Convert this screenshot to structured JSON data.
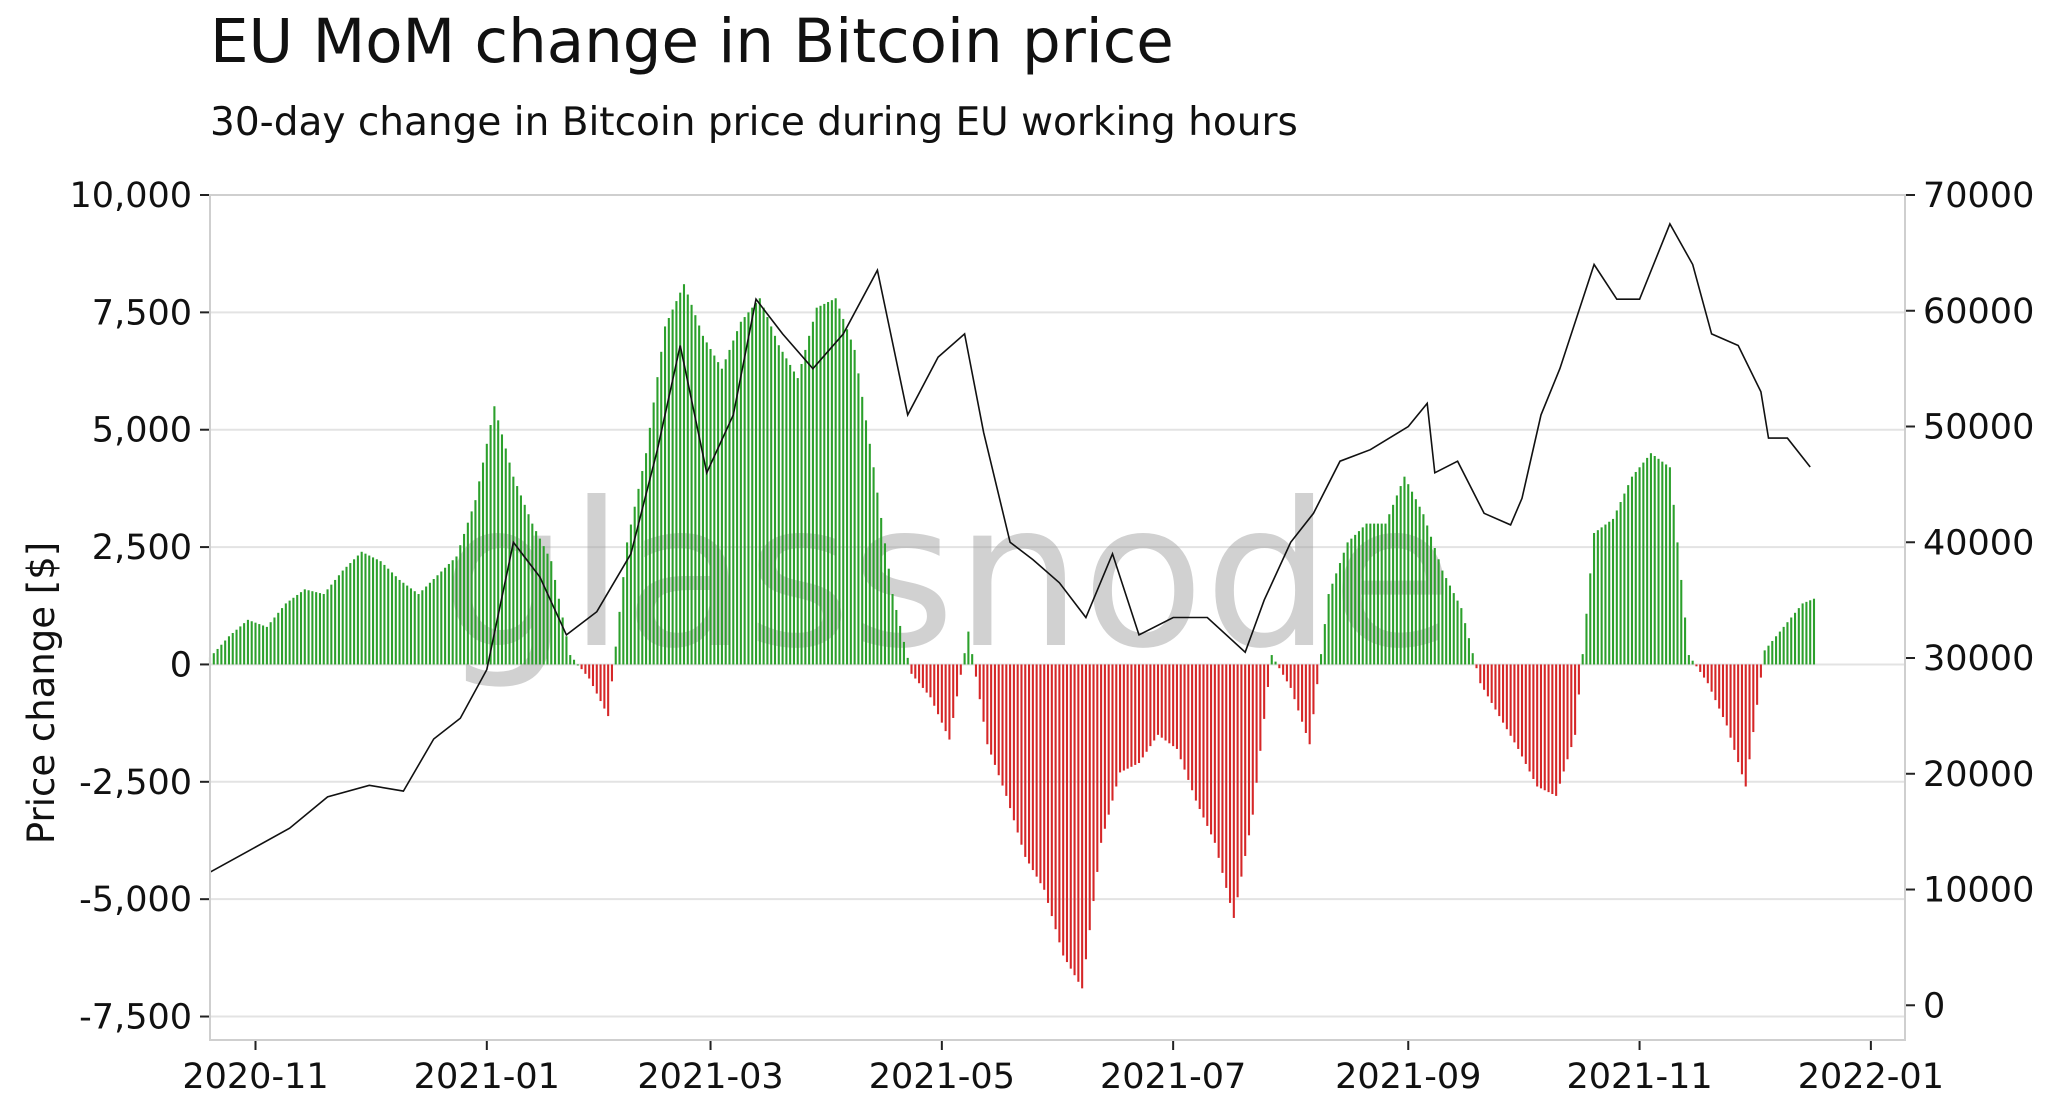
{
  "header": {
    "title": "EU MoM change in Bitcoin price",
    "subtitle": "30-day change in Bitcoin price during EU working hours"
  },
  "watermark": "glassnode",
  "colors": {
    "positive": "#2ca02c",
    "negative": "#d62728",
    "line": "#111111",
    "grid": "#e3e3e3"
  },
  "chart_data": {
    "type": "bar",
    "title": "EU MoM change in Bitcoin price",
    "subtitle": "30-day change in Bitcoin price during EU working hours",
    "ylabel": "Price change [$]",
    "ylim": [
      -8000,
      10000
    ],
    "y2lim": [
      -3000,
      70000
    ],
    "xlim": [
      "2020-10-20",
      "2022-01-10"
    ],
    "x_ticks": [
      "2020-11",
      "2021-01",
      "2021-03",
      "2021-05",
      "2021-07",
      "2021-09",
      "2021-11",
      "2022-01"
    ],
    "y_ticks": [
      10000,
      7500,
      5000,
      2500,
      0,
      -2500,
      -5000,
      -7500
    ],
    "y_tick_labels": [
      "10,000",
      "7,500",
      "5,000",
      "2,500",
      "0",
      "-2,500",
      "-5,000",
      "-7,500"
    ],
    "y2_ticks": [
      70000,
      60000,
      50000,
      40000,
      30000,
      20000,
      10000,
      0
    ],
    "y2_tick_labels": [
      "70000",
      "60000",
      "50000",
      "40000",
      "30000",
      "20000",
      "10000",
      "0"
    ],
    "grid": true,
    "series": [
      {
        "type": "bar",
        "axis": "left",
        "dates": [
          "2020-10-20",
          "2020-10-25",
          "2020-10-30",
          "2020-11-04",
          "2020-11-09",
          "2020-11-14",
          "2020-11-19",
          "2020-11-24",
          "2020-11-29",
          "2020-12-04",
          "2020-12-09",
          "2020-12-14",
          "2020-12-19",
          "2020-12-24",
          "2020-12-29",
          "2021-01-03",
          "2021-01-08",
          "2021-01-13",
          "2021-01-18",
          "2021-01-23",
          "2021-01-28",
          "2021-02-02",
          "2021-02-07",
          "2021-02-12",
          "2021-02-17",
          "2021-02-22",
          "2021-02-27",
          "2021-03-04",
          "2021-03-09",
          "2021-03-14",
          "2021-03-19",
          "2021-03-24",
          "2021-03-29",
          "2021-04-03",
          "2021-04-08",
          "2021-04-13",
          "2021-04-18",
          "2021-04-23",
          "2021-04-28",
          "2021-05-03",
          "2021-05-08",
          "2021-05-13",
          "2021-05-18",
          "2021-05-23",
          "2021-05-28",
          "2021-06-02",
          "2021-06-07",
          "2021-06-12",
          "2021-06-17",
          "2021-06-22",
          "2021-06-27",
          "2021-07-02",
          "2021-07-07",
          "2021-07-12",
          "2021-07-17",
          "2021-07-22",
          "2021-07-27",
          "2021-08-01",
          "2021-08-06",
          "2021-08-11",
          "2021-08-16",
          "2021-08-21",
          "2021-08-26",
          "2021-08-31",
          "2021-09-05",
          "2021-09-10",
          "2021-09-15",
          "2021-09-20",
          "2021-09-25",
          "2021-09-30",
          "2021-10-05",
          "2021-10-10",
          "2021-10-15",
          "2021-10-20",
          "2021-10-25",
          "2021-10-30",
          "2021-11-04",
          "2021-11-09",
          "2021-11-14",
          "2021-11-19",
          "2021-11-24",
          "2021-11-29",
          "2021-12-04",
          "2021-12-09",
          "2021-12-14",
          "2021-12-17"
        ],
        "values": [
          150,
          600,
          950,
          800,
          1300,
          1600,
          1500,
          2000,
          2400,
          2200,
          1800,
          1500,
          1900,
          2300,
          3500,
          5500,
          4000,
          3000,
          2200,
          200,
          -300,
          -1100,
          2600,
          4500,
          7200,
          8100,
          7000,
          6300,
          7300,
          7800,
          6800,
          6100,
          7600,
          7800,
          6700,
          4200,
          1500,
          -200,
          -700,
          -1600,
          700,
          -1700,
          -2800,
          -4100,
          -4800,
          -6200,
          -6900,
          -3800,
          -2300,
          -2100,
          -1500,
          -1800,
          -2900,
          -3800,
          -5400,
          -3200,
          200,
          -500,
          -1700,
          1500,
          2600,
          3000,
          3000,
          4000,
          3200,
          2000,
          1200,
          -400,
          -1100,
          -1800,
          -2600,
          -2800,
          -1500,
          2800,
          3100,
          4000,
          4500,
          4200,
          200,
          -400,
          -1300,
          -2600,
          300,
          800,
          1300,
          1400
        ]
      },
      {
        "type": "line",
        "axis": "right",
        "dates": [
          "2020-10-20",
          "2020-10-30",
          "2020-11-10",
          "2020-11-20",
          "2020-12-01",
          "2020-12-10",
          "2020-12-18",
          "2020-12-25",
          "2021-01-01",
          "2021-01-08",
          "2021-01-15",
          "2021-01-22",
          "2021-01-30",
          "2021-02-08",
          "2021-02-15",
          "2021-02-21",
          "2021-02-28",
          "2021-03-07",
          "2021-03-13",
          "2021-03-20",
          "2021-03-28",
          "2021-04-05",
          "2021-04-14",
          "2021-04-22",
          "2021-04-30",
          "2021-05-07",
          "2021-05-12",
          "2021-05-19",
          "2021-05-25",
          "2021-06-01",
          "2021-06-08",
          "2021-06-15",
          "2021-06-22",
          "2021-07-01",
          "2021-07-10",
          "2021-07-20",
          "2021-07-25",
          "2021-08-01",
          "2021-08-07",
          "2021-08-14",
          "2021-08-22",
          "2021-09-01",
          "2021-09-06",
          "2021-09-08",
          "2021-09-14",
          "2021-09-21",
          "2021-09-28",
          "2021-10-01",
          "2021-10-06",
          "2021-10-11",
          "2021-10-16",
          "2021-10-20",
          "2021-10-26",
          "2021-11-01",
          "2021-11-09",
          "2021-11-15",
          "2021-11-20",
          "2021-11-27",
          "2021-12-03",
          "2021-12-05",
          "2021-12-10",
          "2021-12-16"
        ],
        "values": [
          11500,
          13300,
          15300,
          18000,
          19000,
          18500,
          23000,
          24800,
          29000,
          40000,
          37000,
          32000,
          34000,
          39000,
          48000,
          57000,
          46000,
          51000,
          61000,
          58000,
          55000,
          58000,
          63500,
          51000,
          56000,
          58000,
          49500,
          40000,
          38500,
          36500,
          33500,
          39000,
          32000,
          33500,
          33500,
          30500,
          35000,
          40000,
          42500,
          47000,
          48000,
          50000,
          52000,
          46000,
          47000,
          42500,
          41500,
          43800,
          51000,
          55000,
          60000,
          64000,
          61000,
          61000,
          67500,
          64000,
          58000,
          57000,
          53000,
          49000,
          49000,
          46500
        ]
      }
    ]
  },
  "ui": {
    "ylabel": "Price change [$]"
  }
}
